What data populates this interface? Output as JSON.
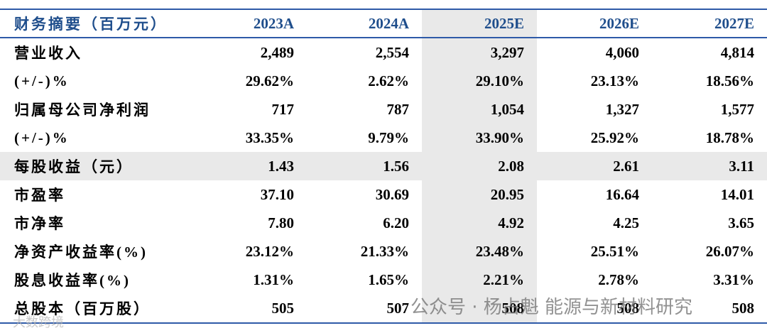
{
  "table": {
    "header": [
      "财务摘要（百万元）",
      "2023A",
      "2024A",
      "2025E",
      "2026E",
      "2027E"
    ],
    "rows": [
      [
        "营业收入",
        "2,489",
        "2,554",
        "3,297",
        "4,060",
        "4,814"
      ],
      [
        "(+/-)%",
        "29.62%",
        "2.62%",
        "29.10%",
        "23.13%",
        "18.56%"
      ],
      [
        "归属母公司净利润",
        "717",
        "787",
        "1,054",
        "1,327",
        "1,577"
      ],
      [
        "(+/-)%",
        "33.35%",
        "9.79%",
        "33.90%",
        "25.92%",
        "18.78%"
      ],
      [
        "每股收益（元）",
        "1.43",
        "1.56",
        "2.08",
        "2.61",
        "3.11"
      ],
      [
        "市盈率",
        "37.10",
        "30.69",
        "20.95",
        "16.64",
        "14.01"
      ],
      [
        "市净率",
        "7.80",
        "6.20",
        "4.92",
        "4.25",
        "3.65"
      ],
      [
        "净资产收益率(%)",
        "23.12%",
        "21.33%",
        "23.48%",
        "25.51%",
        "26.07%"
      ],
      [
        "股息收益率(%)",
        "1.31%",
        "1.65%",
        "2.21%",
        "2.78%",
        "3.31%"
      ],
      [
        "总股本（百万股）",
        "505",
        "507",
        "508",
        "508",
        "508"
      ]
    ]
  },
  "watermark": {
    "source": "公众号 · 杨占魁 能源与新材料研究",
    "corner": "大数跨境"
  }
}
